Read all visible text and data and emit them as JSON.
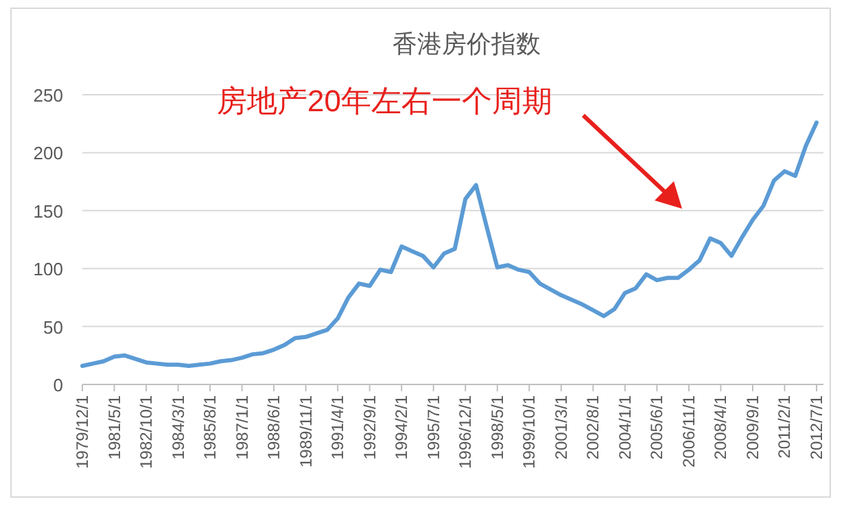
{
  "chart_data": {
    "type": "line",
    "title": "香港房价指数",
    "annotations": [
      "房地产20年左右一个周期"
    ],
    "categories": [
      "1979/12/1",
      null,
      null,
      "1981/5/1",
      null,
      null,
      "1982/10/1",
      null,
      null,
      "1984/3/1",
      null,
      null,
      "1985/8/1",
      null,
      null,
      "1987/1/1",
      null,
      null,
      "1988/6/1",
      null,
      null,
      "1989/11/1",
      null,
      null,
      "1991/4/1",
      null,
      null,
      "1992/9/1",
      null,
      null,
      "1994/2/1",
      null,
      null,
      "1995/7/1",
      null,
      null,
      "1996/12/1",
      null,
      null,
      "1998/5/1",
      null,
      null,
      "1999/10/1",
      null,
      null,
      "2001/3/1",
      null,
      null,
      "2002/8/1",
      null,
      null,
      "2004/1/1",
      null,
      null,
      "2005/6/1",
      null,
      null,
      "2006/11/1",
      null,
      null,
      "2008/4/1",
      null,
      null,
      "2009/9/1",
      null,
      null,
      "2011/2/1",
      null,
      null,
      "2012/7/1"
    ],
    "series": [
      {
        "color": "#5b9bd5",
        "values": [
          16,
          18,
          20,
          24,
          25,
          22,
          19,
          18,
          17,
          17,
          16,
          17,
          18,
          20,
          21,
          23,
          26,
          27,
          30,
          34,
          40,
          41,
          44,
          47,
          57,
          75,
          87,
          85,
          99,
          97,
          119,
          115,
          111,
          101,
          113,
          117,
          160,
          172,
          136,
          101,
          103,
          99,
          97,
          87,
          82,
          77,
          73,
          69,
          64,
          59,
          65,
          79,
          83,
          95,
          90,
          92,
          92,
          99,
          107,
          126,
          122,
          111,
          127,
          142,
          154,
          176,
          184,
          180,
          206,
          226
        ]
      }
    ],
    "ylim": [
      0,
      250
    ],
    "yticks": [
      0,
      50,
      100,
      150,
      200,
      250
    ],
    "grid": "y",
    "line_style": "solid",
    "marker": "none"
  }
}
